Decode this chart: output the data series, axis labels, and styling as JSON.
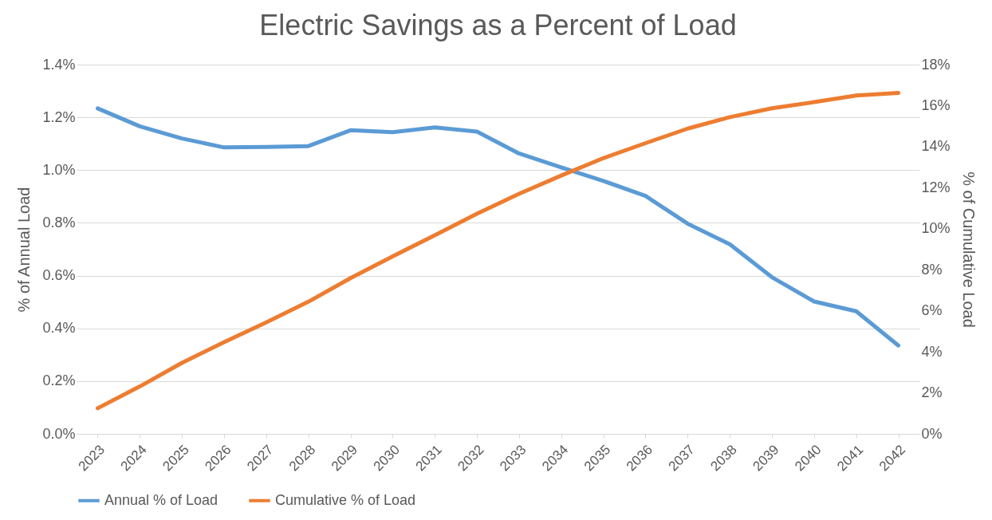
{
  "chart_data": {
    "type": "line",
    "title": "Electric Savings as a Percent of Load",
    "ylabel": "% of Annual Load",
    "y2label": "% of Cumulative Load",
    "categories": [
      "2023",
      "2024",
      "2025",
      "2026",
      "2027",
      "2028",
      "2029",
      "2030",
      "2031",
      "2032",
      "2033",
      "2034",
      "2035",
      "2036",
      "2037",
      "2038",
      "2039",
      "2040",
      "2041",
      "2042"
    ],
    "series": [
      {
        "name": "Annual % of Load",
        "color": "#5b9bd5",
        "values": [
          1.234,
          1.166,
          1.12,
          1.086,
          1.088,
          1.091,
          1.151,
          1.144,
          1.162,
          1.146,
          1.063,
          1.01,
          0.959,
          0.902,
          0.797,
          0.719,
          0.594,
          0.502,
          0.465,
          0.335
        ]
      },
      {
        "name": "Cumulative % of Load",
        "color": "#ed7d31",
        "axis": "y2",
        "values": [
          1.25,
          2.31,
          3.46,
          4.47,
          5.43,
          6.44,
          7.59,
          8.65,
          9.68,
          10.73,
          11.7,
          12.59,
          13.44,
          14.17,
          14.88,
          15.44,
          15.87,
          16.17,
          16.49,
          16.62
        ]
      }
    ],
    "ylim": [
      0,
      1.4
    ],
    "yticks": [
      {
        "value": 0,
        "label": "0.0%"
      },
      {
        "value": 0.2,
        "label": "0.2%"
      },
      {
        "value": 0.4,
        "label": "0.4%"
      },
      {
        "value": 0.6,
        "label": "0.6%"
      },
      {
        "value": 0.8,
        "label": "0.8%"
      },
      {
        "value": 1.0,
        "label": "1.0%"
      },
      {
        "value": 1.2,
        "label": "1.2%"
      },
      {
        "value": 1.4,
        "label": "1.4%"
      }
    ],
    "y2lim": [
      0,
      18
    ],
    "y2ticks": [
      {
        "value": 0,
        "label": "0%"
      },
      {
        "value": 2,
        "label": "2%"
      },
      {
        "value": 4,
        "label": "4%"
      },
      {
        "value": 6,
        "label": "6%"
      },
      {
        "value": 8,
        "label": "8%"
      },
      {
        "value": 10,
        "label": "10%"
      },
      {
        "value": 12,
        "label": "12%"
      },
      {
        "value": 14,
        "label": "14%"
      },
      {
        "value": 16,
        "label": "16%"
      },
      {
        "value": 18,
        "label": "18%"
      }
    ],
    "grid": "y",
    "legend": "bottom",
    "marker": "none",
    "line_style": "solid"
  }
}
